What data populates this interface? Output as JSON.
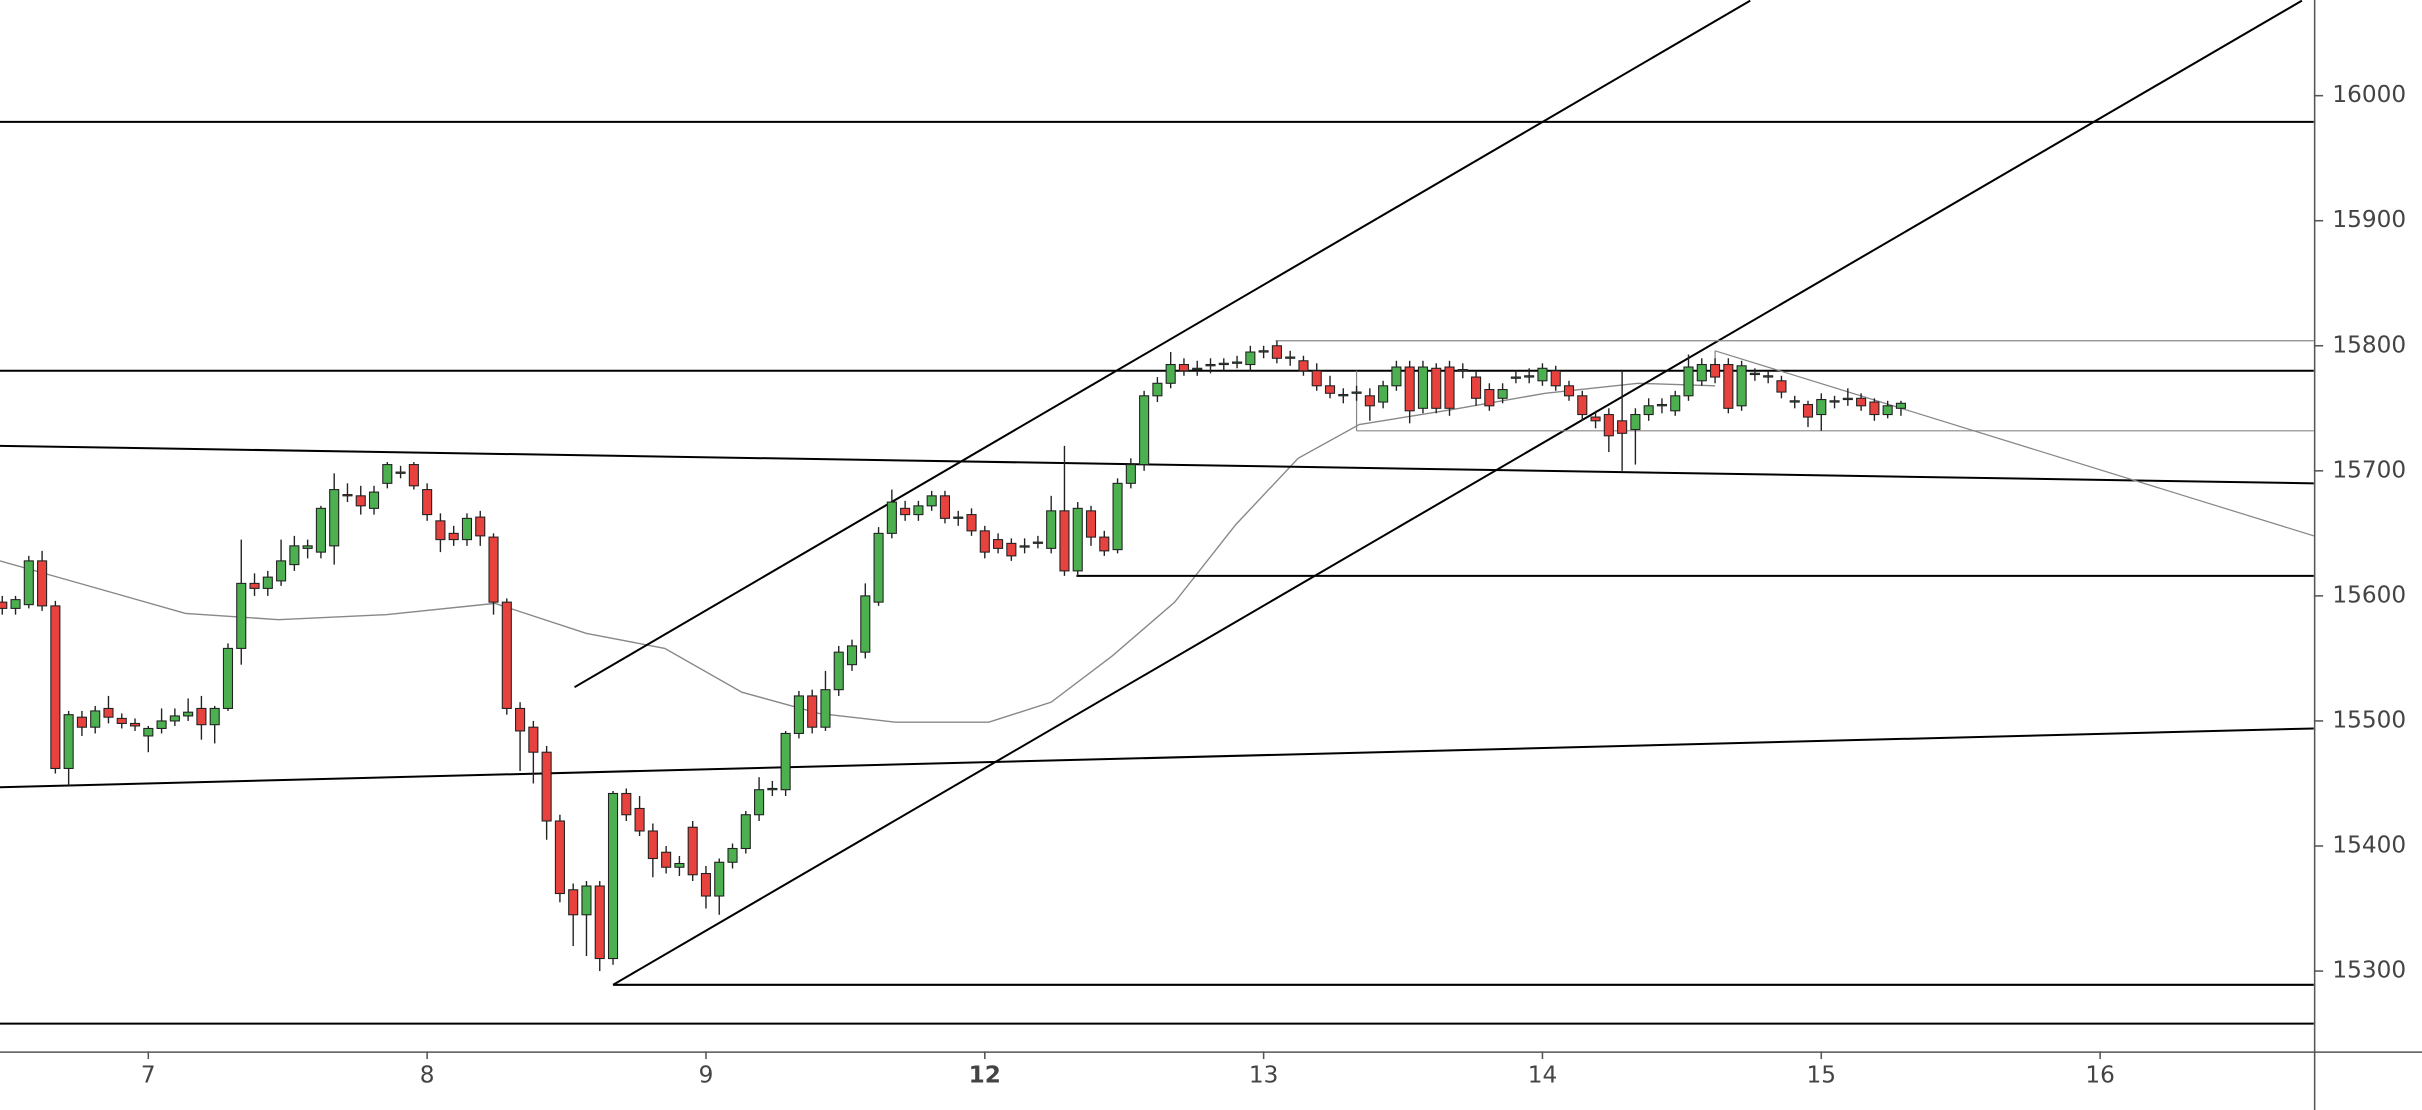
{
  "chart_data": {
    "type": "candlestick",
    "xlim": [
      -0.17,
      174.1
    ],
    "xticks": [
      {
        "value": 11,
        "label": "7"
      },
      {
        "value": 32,
        "label": "8"
      },
      {
        "value": 53,
        "label": "9"
      },
      {
        "value": 74,
        "label": "12",
        "bold": true
      },
      {
        "value": 95,
        "label": "13"
      },
      {
        "value": 116,
        "label": "14"
      },
      {
        "value": 137,
        "label": "15"
      },
      {
        "value": 158,
        "label": "16"
      }
    ],
    "ylim": [
      15235.8,
      16076.5
    ],
    "yticks": [
      15300,
      15400,
      15500,
      15600,
      15700,
      15800,
      15900,
      16000
    ],
    "up_color": "#4caf50",
    "down_color": "#e8423f",
    "ohlc": [
      [
        15595,
        15600,
        15585,
        15590
      ],
      [
        15590,
        15600,
        15585,
        15597
      ],
      [
        15593,
        15632,
        15590,
        15628
      ],
      [
        15628,
        15636,
        15588,
        15592
      ],
      [
        15592,
        15596,
        15458,
        15462
      ],
      [
        15462,
        15508,
        15448,
        15505
      ],
      [
        15503,
        15508,
        15488,
        15495
      ],
      [
        15495,
        15512,
        15490,
        15508
      ],
      [
        15510,
        15520,
        15498,
        15503
      ],
      [
        15502,
        15506,
        15494,
        15498
      ],
      [
        15498,
        15502,
        15492,
        15496
      ],
      [
        15488,
        15496,
        15475,
        15494
      ],
      [
        15494,
        15510,
        15490,
        15500
      ],
      [
        15500,
        15510,
        15496,
        15504
      ],
      [
        15504,
        15518,
        15500,
        15507
      ],
      [
        15510,
        15520,
        15485,
        15497
      ],
      [
        15497,
        15512,
        15482,
        15510
      ],
      [
        15510,
        15562,
        15508,
        15558
      ],
      [
        15558,
        15645,
        15545,
        15610
      ],
      [
        15610,
        15618,
        15600,
        15606
      ],
      [
        15606,
        15620,
        15600,
        15615
      ],
      [
        15612,
        15645,
        15608,
        15628
      ],
      [
        15625,
        15648,
        15620,
        15640
      ],
      [
        15638,
        15645,
        15630,
        15640
      ],
      [
        15635,
        15672,
        15630,
        15670
      ],
      [
        15640,
        15698,
        15625,
        15685
      ],
      [
        15681,
        15690,
        15675,
        15680
      ],
      [
        15680,
        15688,
        15665,
        15672
      ],
      [
        15670,
        15688,
        15665,
        15683
      ],
      [
        15690,
        15707,
        15686,
        15705
      ],
      [
        15698,
        15704,
        15694,
        15699
      ],
      [
        15705,
        15707,
        15685,
        15688
      ],
      [
        15685,
        15690,
        15660,
        15665
      ],
      [
        15660,
        15666,
        15635,
        15645
      ],
      [
        15650,
        15656,
        15640,
        15645
      ],
      [
        15645,
        15666,
        15640,
        15662
      ],
      [
        15663,
        15668,
        15640,
        15648
      ],
      [
        15647,
        15650,
        15585,
        15595
      ],
      [
        15595,
        15598,
        15505,
        15510
      ],
      [
        15510,
        15515,
        15460,
        15492
      ],
      [
        15495,
        15500,
        15450,
        15475
      ],
      [
        15475,
        15480,
        15405,
        15420
      ],
      [
        15420,
        15425,
        15355,
        15362
      ],
      [
        15365,
        15370,
        15320,
        15345
      ],
      [
        15345,
        15372,
        15312,
        15368
      ],
      [
        15368,
        15372,
        15300,
        15310
      ],
      [
        15310,
        15444,
        15305,
        15442
      ],
      [
        15442,
        15446,
        15420,
        15425
      ],
      [
        15430,
        15440,
        15408,
        15412
      ],
      [
        15412,
        15418,
        15375,
        15390
      ],
      [
        15395,
        15400,
        15378,
        15383
      ],
      [
        15383,
        15392,
        15376,
        15386
      ],
      [
        15415,
        15420,
        15372,
        15377
      ],
      [
        15378,
        15384,
        15350,
        15360
      ],
      [
        15360,
        15390,
        15345,
        15387
      ],
      [
        15387,
        15402,
        15382,
        15398
      ],
      [
        15398,
        15428,
        15394,
        15425
      ],
      [
        15425,
        15455,
        15420,
        15445
      ],
      [
        15445,
        15452,
        15440,
        15446
      ],
      [
        15445,
        15492,
        15440,
        15490
      ],
      [
        15490,
        15524,
        15486,
        15520
      ],
      [
        15520,
        15525,
        15490,
        15495
      ],
      [
        15495,
        15540,
        15492,
        15525
      ],
      [
        15525,
        15560,
        15520,
        15555
      ],
      [
        15545,
        15565,
        15540,
        15560
      ],
      [
        15555,
        15610,
        15550,
        15600
      ],
      [
        15595,
        15655,
        15592,
        15650
      ],
      [
        15650,
        15685,
        15646,
        15675
      ],
      [
        15670,
        15676,
        15660,
        15665
      ],
      [
        15665,
        15676,
        15660,
        15672
      ],
      [
        15672,
        15684,
        15668,
        15680
      ],
      [
        15680,
        15684,
        15658,
        15662
      ],
      [
        15662,
        15668,
        15656,
        15663
      ],
      [
        15665,
        15670,
        15648,
        15652
      ],
      [
        15652,
        15656,
        15630,
        15635
      ],
      [
        15645,
        15650,
        15634,
        15638
      ],
      [
        15642,
        15646,
        15628,
        15632
      ],
      [
        15640,
        15646,
        15634,
        15640
      ],
      [
        15643,
        15648,
        15638,
        15643
      ],
      [
        15638,
        15680,
        15634,
        15668
      ],
      [
        15668,
        15720,
        15616,
        15620
      ],
      [
        15620,
        15675,
        15616,
        15670
      ],
      [
        15668,
        15672,
        15640,
        15647
      ],
      [
        15647,
        15652,
        15632,
        15636
      ],
      [
        15637,
        15694,
        15634,
        15690
      ],
      [
        15690,
        15710,
        15686,
        15705
      ],
      [
        15705,
        15764,
        15700,
        15760
      ],
      [
        15760,
        15775,
        15755,
        15770
      ],
      [
        15770,
        15795,
        15766,
        15785
      ],
      [
        15785,
        15790,
        15776,
        15780
      ],
      [
        15781,
        15788,
        15776,
        15782
      ],
      [
        15784,
        15790,
        15778,
        15785
      ],
      [
        15785,
        15790,
        15780,
        15786
      ],
      [
        15786,
        15792,
        15782,
        15787
      ],
      [
        15785,
        15800,
        15780,
        15795
      ],
      [
        15795,
        15800,
        15790,
        15796
      ],
      [
        15800,
        15804,
        15786,
        15790
      ],
      [
        15790,
        15796,
        15784,
        15791
      ],
      [
        15788,
        15792,
        15776,
        15780
      ],
      [
        15780,
        15786,
        15764,
        15768
      ],
      [
        15768,
        15776,
        15758,
        15762
      ],
      [
        15760,
        15766,
        15754,
        15761
      ],
      [
        15762,
        15768,
        15756,
        15763
      ],
      [
        15760,
        15766,
        15740,
        15752
      ],
      [
        15755,
        15772,
        15750,
        15768
      ],
      [
        15768,
        15788,
        15764,
        15783
      ],
      [
        15783,
        15788,
        15738,
        15748
      ],
      [
        15750,
        15788,
        15746,
        15783
      ],
      [
        15782,
        15786,
        15746,
        15750
      ],
      [
        15783,
        15788,
        15744,
        15750
      ],
      [
        15780,
        15786,
        15774,
        15781
      ],
      [
        15775,
        15780,
        15752,
        15758
      ],
      [
        15765,
        15770,
        15748,
        15752
      ],
      [
        15758,
        15770,
        15754,
        15765
      ],
      [
        15774,
        15780,
        15770,
        15775
      ],
      [
        15775,
        15782,
        15770,
        15776
      ],
      [
        15772,
        15786,
        15768,
        15782
      ],
      [
        15780,
        15784,
        15764,
        15768
      ],
      [
        15768,
        15772,
        15756,
        15760
      ],
      [
        15760,
        15764,
        15740,
        15745
      ],
      [
        15743,
        15748,
        15734,
        15740
      ],
      [
        15745,
        15750,
        15715,
        15728
      ],
      [
        15740,
        15780,
        15700,
        15730
      ],
      [
        15733,
        15750,
        15705,
        15745
      ],
      [
        15745,
        15758,
        15740,
        15752
      ],
      [
        15752,
        15758,
        15746,
        15753
      ],
      [
        15748,
        15764,
        15744,
        15760
      ],
      [
        15760,
        15793,
        15756,
        15783
      ],
      [
        15772,
        15790,
        15768,
        15785
      ],
      [
        15785,
        15790,
        15770,
        15775
      ],
      [
        15785,
        15790,
        15746,
        15750
      ],
      [
        15752,
        15788,
        15748,
        15784
      ],
      [
        15777,
        15782,
        15772,
        15778
      ],
      [
        15775,
        15780,
        15770,
        15776
      ],
      [
        15772,
        15776,
        15758,
        15763
      ],
      [
        15755,
        15760,
        15750,
        15756
      ],
      [
        15753,
        15756,
        15735,
        15743
      ],
      [
        15745,
        15762,
        15732,
        15757
      ],
      [
        15755,
        15760,
        15750,
        15756
      ],
      [
        15757,
        15766,
        15752,
        15758
      ],
      [
        15758,
        15762,
        15748,
        15752
      ],
      [
        15755,
        15758,
        15740,
        15745
      ],
      [
        15745,
        15756,
        15742,
        15752
      ],
      [
        15750,
        15756,
        15744,
        15754
      ]
    ],
    "ma": {
      "color": "#888888",
      "x": [
        -0.17,
        4.5,
        13.8,
        20.8,
        28.9,
        37.1,
        44.0,
        49.9,
        55.7,
        61.5,
        67.3,
        74.3,
        79.0,
        83.6,
        88.3,
        92.9,
        97.6,
        102.2,
        109.2,
        116.2,
        123.2,
        129.0
      ],
      "y": [
        15628,
        15614,
        15586,
        15581,
        15585,
        15594,
        15570,
        15558,
        15523,
        15506,
        15499,
        15499,
        15515,
        15552,
        15595,
        15657,
        15710,
        15737,
        15749,
        15762,
        15770,
        15768
      ]
    },
    "lines": [
      {
        "color": "#000000",
        "x": [
          -0.17,
          174.1
        ],
        "y": [
          15979,
          15979
        ]
      },
      {
        "color": "#000000",
        "x": [
          -0.17,
          174.1
        ],
        "y": [
          15780,
          15780
        ]
      },
      {
        "color": "#000000",
        "x": [
          80.9,
          174.1
        ],
        "y": [
          15616,
          15616
        ]
      },
      {
        "color": "#000000",
        "x": [
          46,
          174.1
        ],
        "y": [
          15289,
          15289
        ]
      },
      {
        "color": "#000000",
        "x": [
          -0.17,
          174.1
        ],
        "y": [
          15258,
          15258
        ]
      },
      {
        "color": "#000000",
        "x": [
          -0.17,
          174.1
        ],
        "y": [
          15720,
          15690
        ]
      },
      {
        "color": "#000000",
        "x": [
          -0.17,
          174.1
        ],
        "y": [
          15447,
          15494
        ]
      },
      {
        "color": "#000000",
        "x": [
          43.1,
          131.65
        ],
        "y": [
          15527,
          16076
        ]
      },
      {
        "color": "#000000",
        "x": [
          46,
          173.2
        ],
        "y": [
          15289,
          16076
        ]
      },
      {
        "color": "#888888",
        "x": [
          95.9,
          174.1
        ],
        "y": [
          15804,
          15804
        ]
      },
      {
        "color": "#888888",
        "x": [
          102,
          174.1
        ],
        "y": [
          15732,
          15732
        ]
      },
      {
        "color": "#888888",
        "x": [
          102,
          102
        ],
        "y": [
          15780,
          15732
        ]
      },
      {
        "color": "#888888",
        "x": [
          129,
          174.1
        ],
        "y": [
          15796,
          15648
        ]
      },
      {
        "color": "#888888",
        "x": [
          129,
          129
        ],
        "y": [
          15796,
          15780
        ]
      }
    ]
  }
}
